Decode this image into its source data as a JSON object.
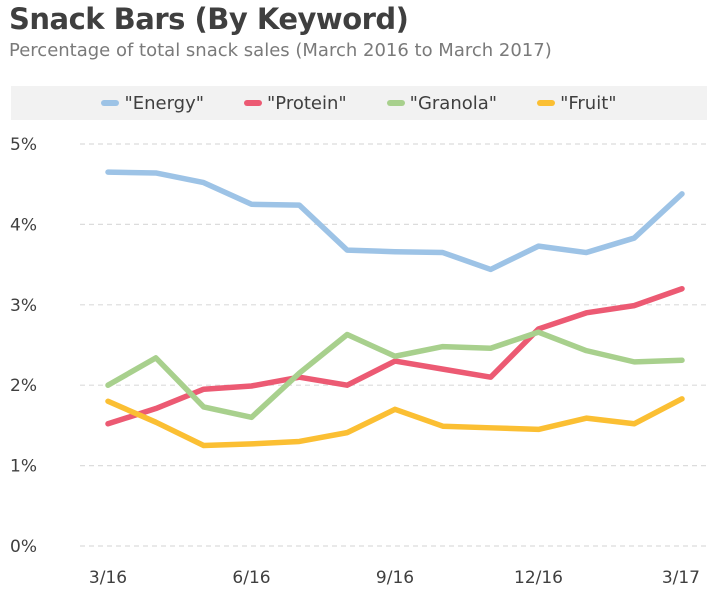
{
  "chart_data": {
    "type": "line",
    "title": "Snack Bars (By Keyword)",
    "subtitle": "Percentage of total snack sales (March 2016 to March 2017)",
    "x": [
      "3/16",
      "4/16",
      "5/16",
      "6/16",
      "7/16",
      "8/16",
      "9/16",
      "10/16",
      "11/16",
      "12/16",
      "1/17",
      "2/17",
      "3/17"
    ],
    "x_tick_labels": [
      "3/16",
      "6/16",
      "9/16",
      "12/16",
      "3/17"
    ],
    "y_tick_labels": [
      "0%",
      "1%",
      "2%",
      "3%",
      "4%",
      "5%"
    ],
    "ylim": [
      0,
      5
    ],
    "y_unit": "%",
    "grid": "horizontal dashed",
    "legend": "top",
    "series": [
      {
        "name": "\"Energy\"",
        "color": "#9dc3e6",
        "values": [
          4.65,
          4.64,
          4.52,
          4.25,
          4.24,
          3.68,
          3.66,
          3.65,
          3.44,
          3.73,
          3.65,
          3.83,
          4.38
        ]
      },
      {
        "name": "\"Protein\"",
        "color": "#ec5a73",
        "values": [
          1.52,
          1.71,
          1.95,
          1.99,
          2.1,
          2.0,
          2.3,
          2.2,
          2.1,
          2.7,
          2.9,
          2.99,
          3.2
        ]
      },
      {
        "name": "\"Granola\"",
        "color": "#a8d08d",
        "values": [
          2.0,
          2.34,
          1.73,
          1.6,
          2.15,
          2.63,
          2.36,
          2.48,
          2.46,
          2.66,
          2.43,
          2.29,
          2.31
        ]
      },
      {
        "name": "\"Fruit\"",
        "color": "#fbbf33",
        "values": [
          1.8,
          1.54,
          1.25,
          1.27,
          1.3,
          1.41,
          1.7,
          1.49,
          1.47,
          1.45,
          1.59,
          1.52,
          1.83
        ]
      }
    ]
  }
}
